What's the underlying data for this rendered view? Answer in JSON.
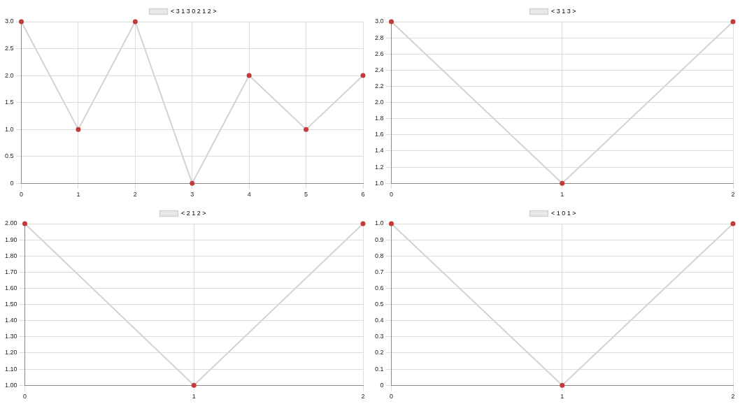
{
  "chart_data": [
    {
      "type": "line",
      "x": [
        0,
        1,
        2,
        3,
        4,
        5,
        6
      ],
      "series": [
        {
          "name": "< 3 1 3 0 2 1 2 >",
          "color": "#d3d3d3",
          "values": [
            3,
            1,
            3,
            0,
            2,
            1,
            2
          ]
        }
      ],
      "xlim": [
        0,
        6
      ],
      "xticks": [
        0,
        1,
        2,
        3,
        4,
        5,
        6
      ],
      "ylim": [
        0,
        3
      ],
      "yticks": [
        0,
        {
          "value": 0.5,
          "label": "0.5"
        },
        {
          "value": 1,
          "label": "1.0"
        },
        {
          "value": 1.5,
          "label": "1.5"
        },
        {
          "value": 2,
          "label": "2.0"
        },
        {
          "value": 2.5,
          "label": "2.5"
        },
        {
          "value": 3,
          "label": "3.0"
        }
      ],
      "grid": true,
      "legend": "top",
      "marker": "circle",
      "line_style": "solid"
    },
    {
      "type": "line",
      "x": [
        0,
        1,
        2
      ],
      "series": [
        {
          "name": "< 3 1 3 >",
          "color": "#d3d3d3",
          "values": [
            3,
            1,
            3
          ]
        }
      ],
      "xlim": [
        0,
        2
      ],
      "xticks": [
        0,
        1,
        2
      ],
      "ylim": [
        1,
        3
      ],
      "yticks": [
        {
          "value": 1,
          "label": "1.0"
        },
        {
          "value": 1.2,
          "label": "1.2"
        },
        {
          "value": 1.4,
          "label": "1.4"
        },
        {
          "value": 1.6,
          "label": "1.6"
        },
        {
          "value": 1.8,
          "label": "1.8"
        },
        {
          "value": 2,
          "label": "2.0"
        },
        {
          "value": 2.2,
          "label": "2.2"
        },
        {
          "value": 2.4,
          "label": "2.4"
        },
        {
          "value": 2.6,
          "label": "2.6"
        },
        {
          "value": 2.8,
          "label": "2.8"
        },
        {
          "value": 3,
          "label": "3.0"
        }
      ],
      "grid": true,
      "legend": "top",
      "marker": "circle",
      "line_style": "solid"
    },
    {
      "type": "line",
      "x": [
        0,
        1,
        2
      ],
      "series": [
        {
          "name": "< 2 1 2 >",
          "color": "#d3d3d3",
          "values": [
            2,
            1,
            2
          ]
        }
      ],
      "xlim": [
        0,
        2
      ],
      "xticks": [
        0,
        1,
        2
      ],
      "ylim": [
        1,
        2
      ],
      "yticks": [
        {
          "value": 1,
          "label": "1.00"
        },
        {
          "value": 1.1,
          "label": "1.10"
        },
        {
          "value": 1.2,
          "label": "1.20"
        },
        {
          "value": 1.3,
          "label": "1.30"
        },
        {
          "value": 1.4,
          "label": "1.40"
        },
        {
          "value": 1.5,
          "label": "1.50"
        },
        {
          "value": 1.6,
          "label": "1.60"
        },
        {
          "value": 1.7,
          "label": "1.70"
        },
        {
          "value": 1.8,
          "label": "1.80"
        },
        {
          "value": 1.9,
          "label": "1.90"
        },
        {
          "value": 2,
          "label": "2.00"
        }
      ],
      "grid": true,
      "legend": "top",
      "marker": "circle",
      "line_style": "solid"
    },
    {
      "type": "line",
      "x": [
        0,
        1,
        2
      ],
      "series": [
        {
          "name": "< 1 0 1 >",
          "color": "#d3d3d3",
          "values": [
            1,
            0,
            1
          ]
        }
      ],
      "xlim": [
        0,
        2
      ],
      "xticks": [
        0,
        1,
        2
      ],
      "ylim": [
        0,
        1
      ],
      "yticks": [
        0,
        {
          "value": 0.1,
          "label": "0.1"
        },
        {
          "value": 0.2,
          "label": "0.2"
        },
        {
          "value": 0.3,
          "label": "0.3"
        },
        {
          "value": 0.4,
          "label": "0.4"
        },
        {
          "value": 0.5,
          "label": "0.5"
        },
        {
          "value": 0.6,
          "label": "0.6"
        },
        {
          "value": 0.7,
          "label": "0.7"
        },
        {
          "value": 0.8,
          "label": "0.8"
        },
        {
          "value": 0.9,
          "label": "0.9"
        },
        {
          "value": 1,
          "label": "1.0"
        }
      ],
      "grid": true,
      "legend": "top",
      "marker": "circle",
      "line_style": "solid"
    }
  ]
}
